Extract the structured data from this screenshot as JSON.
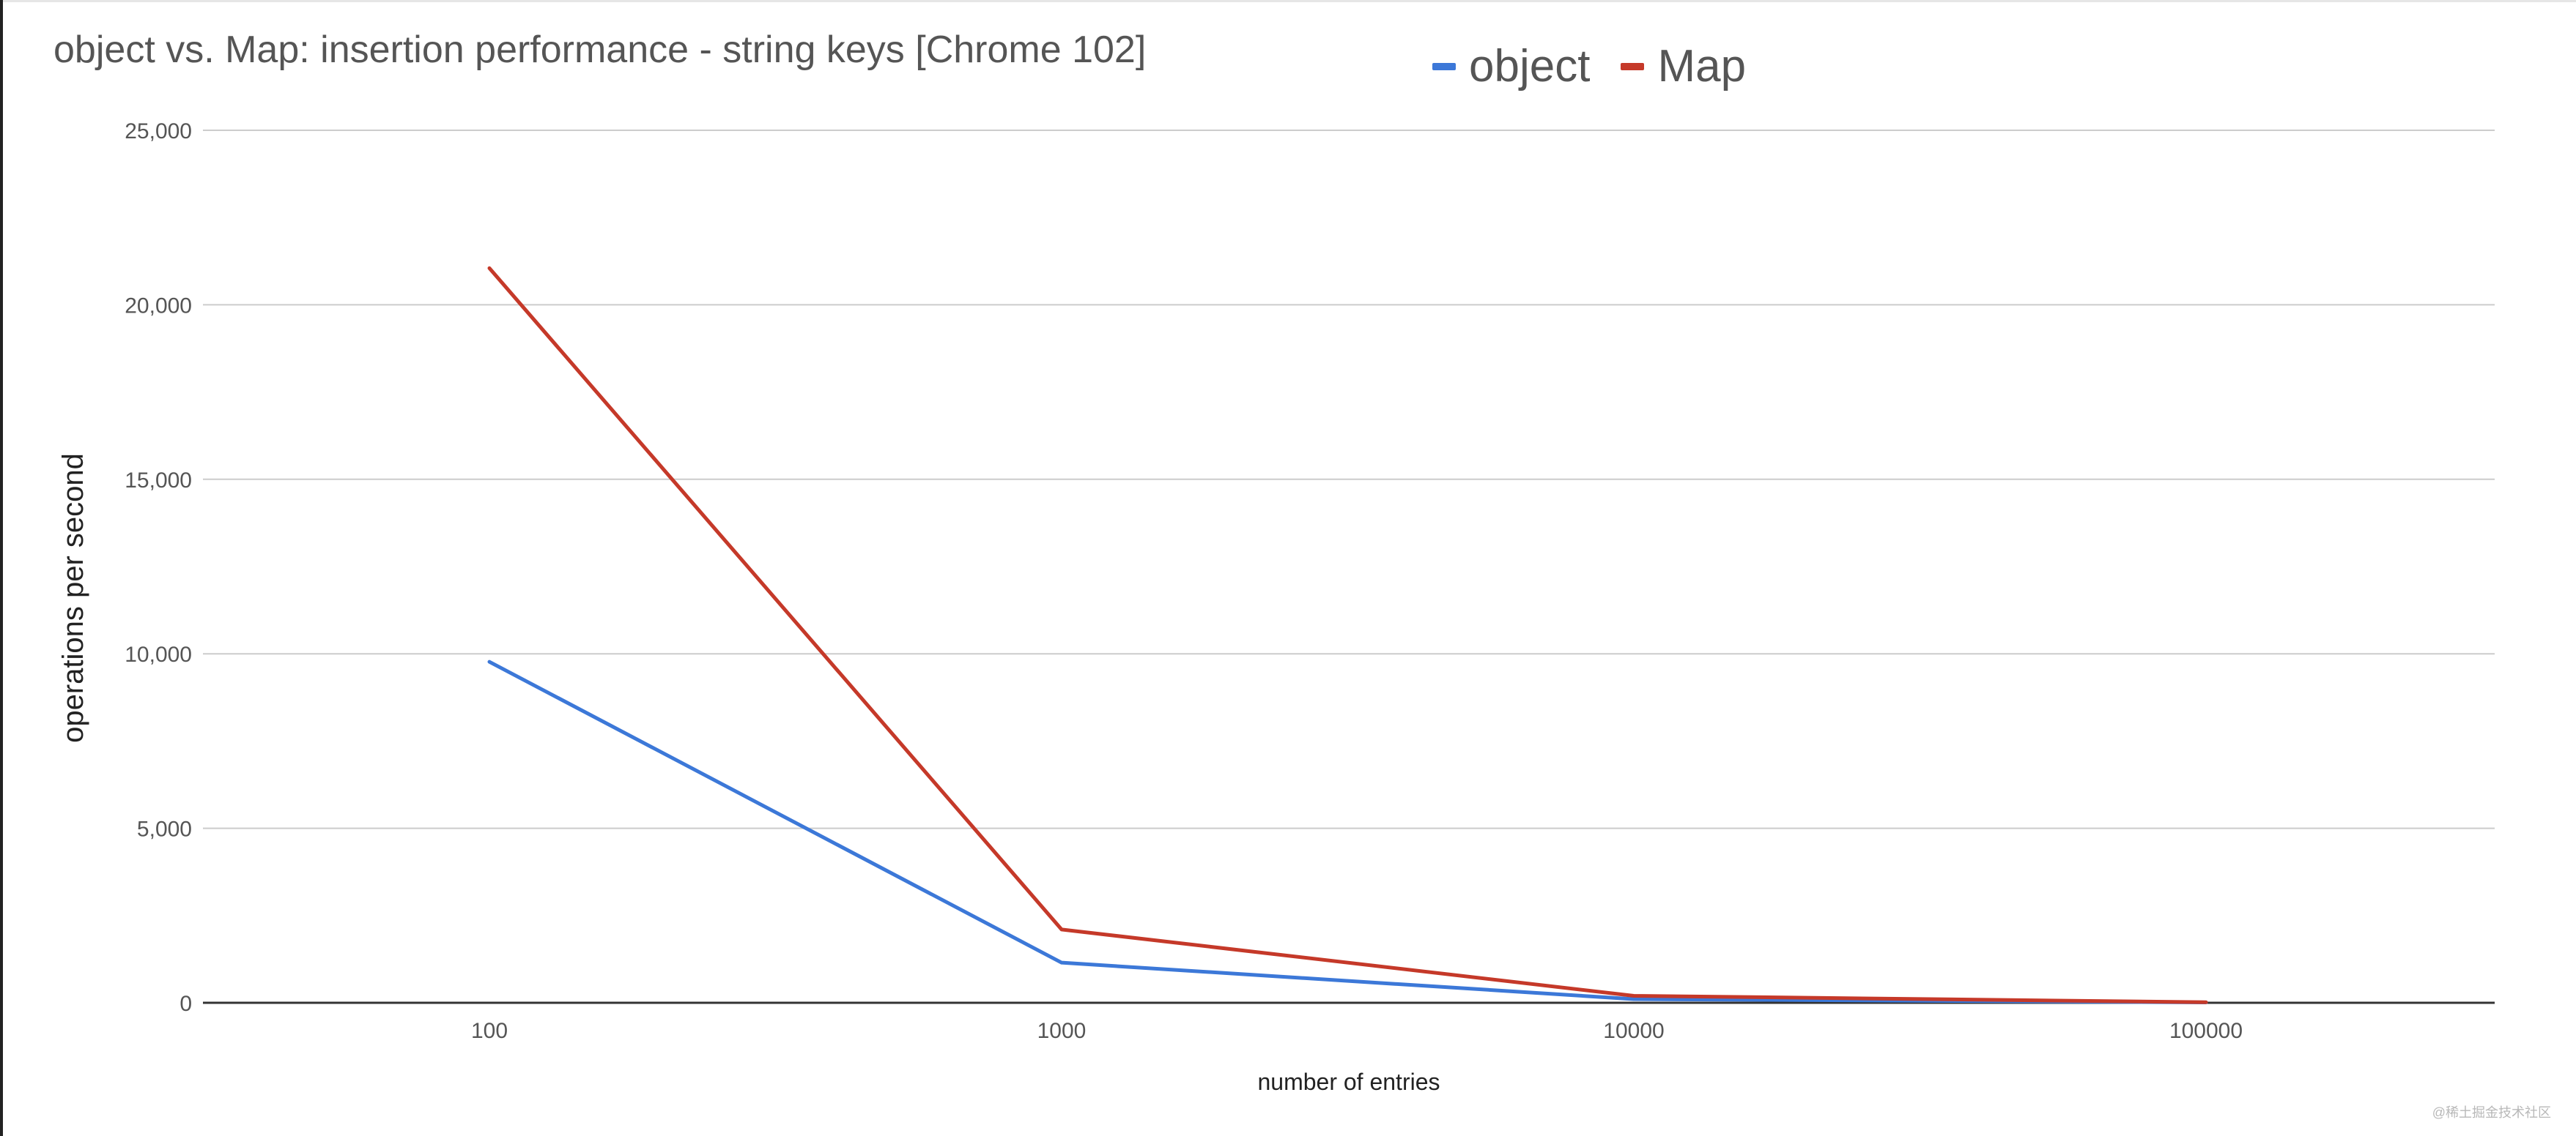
{
  "chart_data": {
    "type": "line",
    "title": "object vs. Map: insertion performance - string keys [Chrome 102]",
    "xlabel": "number of entries",
    "ylabel": "operations per second",
    "categories": [
      "100",
      "1000",
      "10000",
      "100000"
    ],
    "series": [
      {
        "name": "object",
        "color": "#3c78d8",
        "values": [
          9770,
          1150,
          105,
          10
        ]
      },
      {
        "name": "Map",
        "color": "#c53929",
        "values": [
          21050,
          2100,
          200,
          15
        ]
      }
    ],
    "ylim": [
      0,
      25000
    ],
    "yticks": [
      0,
      5000,
      10000,
      15000,
      20000,
      25000
    ],
    "ytick_labels": [
      "0",
      "5,000",
      "10,000",
      "15,000",
      "20,000",
      "25,000"
    ],
    "grid": true,
    "legend_position": "top"
  },
  "watermark": "@稀土掘金技术社区"
}
